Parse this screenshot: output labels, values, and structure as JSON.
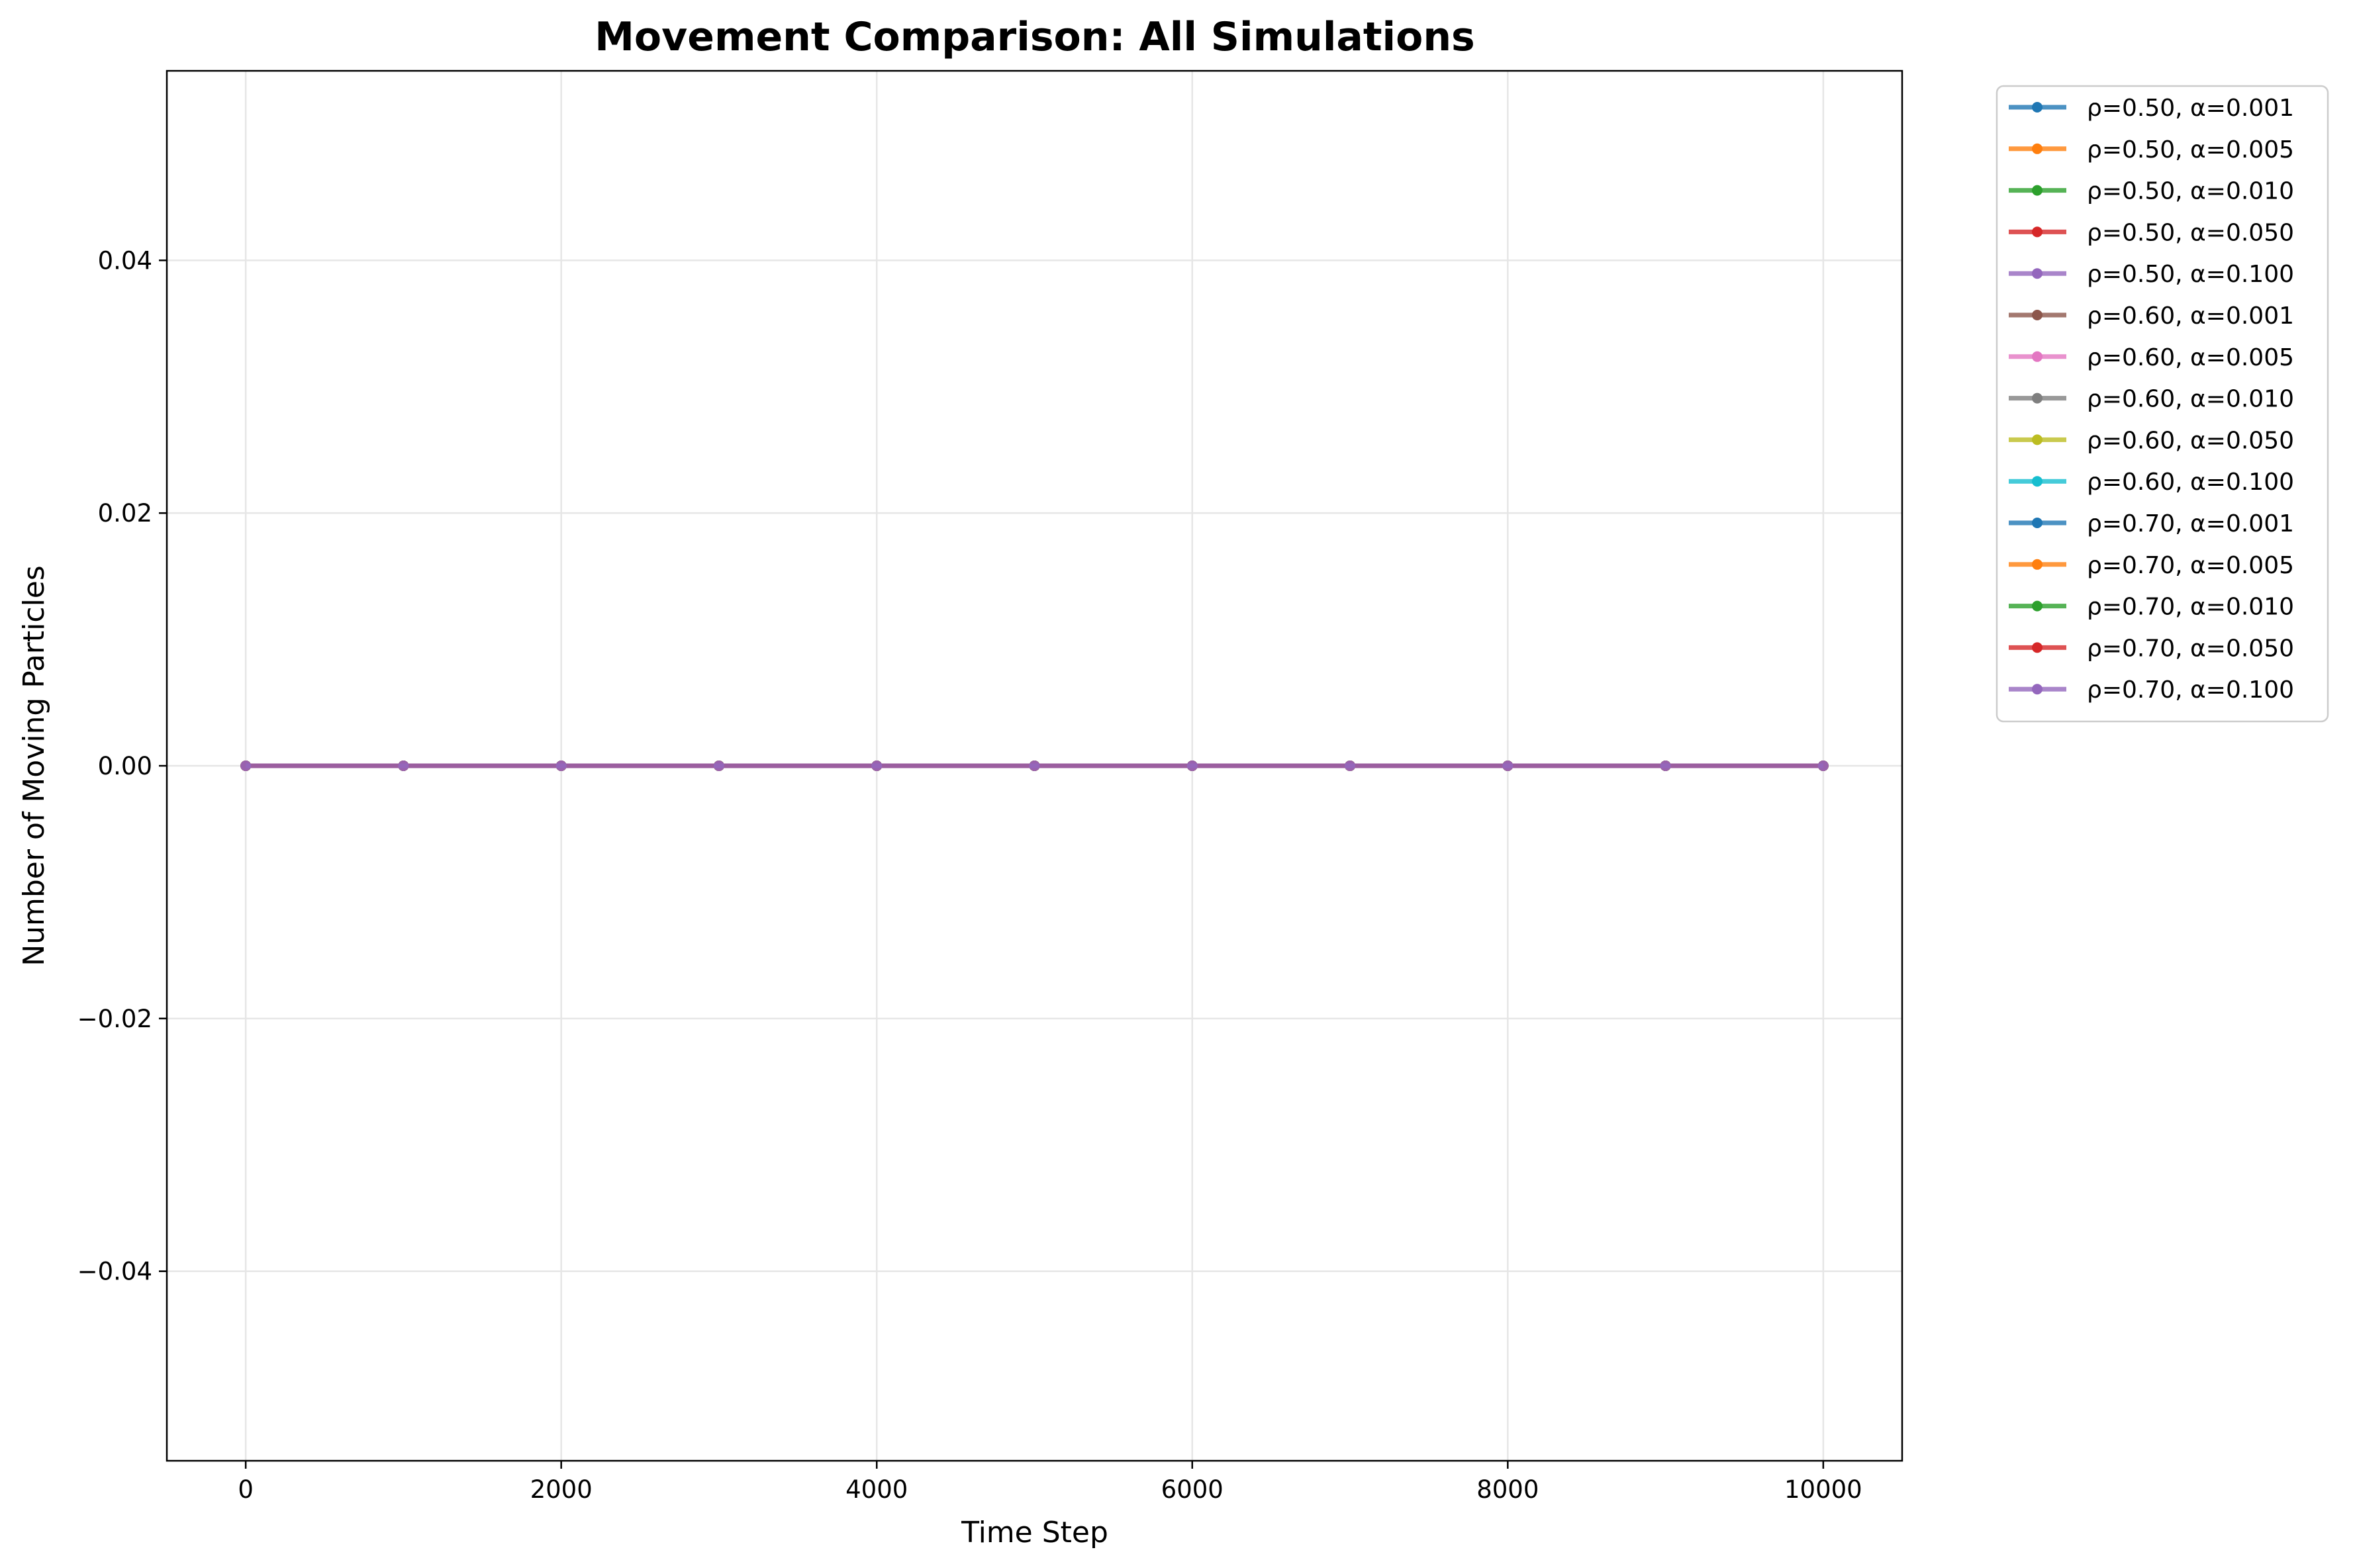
{
  "chart_data": {
    "type": "line",
    "title": "Movement Comparison: All Simulations",
    "xlabel": "Time Step",
    "ylabel": "Number of Moving Particles",
    "xlim": [
      -500,
      10500
    ],
    "ylim": [
      -0.055,
      0.055
    ],
    "xticks": [
      0,
      2000,
      4000,
      6000,
      8000,
      10000
    ],
    "yticks": [
      -0.04,
      -0.02,
      0.0,
      0.02,
      0.04
    ],
    "ytick_labels": [
      "−0.04",
      "−0.02",
      "0.00",
      "0.02",
      "0.04"
    ],
    "grid": true,
    "legend_position": "outside-top-right",
    "x": [
      0,
      1000,
      2000,
      3000,
      4000,
      5000,
      6000,
      7000,
      8000,
      9000,
      10000
    ],
    "series": [
      {
        "name": "ρ=0.50, α=0.001",
        "color": "#1f77b4",
        "values": [
          0,
          0,
          0,
          0,
          0,
          0,
          0,
          0,
          0,
          0,
          0
        ]
      },
      {
        "name": "ρ=0.50, α=0.005",
        "color": "#ff7f0e",
        "values": [
          0,
          0,
          0,
          0,
          0,
          0,
          0,
          0,
          0,
          0,
          0
        ]
      },
      {
        "name": "ρ=0.50, α=0.010",
        "color": "#2ca02c",
        "values": [
          0,
          0,
          0,
          0,
          0,
          0,
          0,
          0,
          0,
          0,
          0
        ]
      },
      {
        "name": "ρ=0.50, α=0.050",
        "color": "#d62728",
        "values": [
          0,
          0,
          0,
          0,
          0,
          0,
          0,
          0,
          0,
          0,
          0
        ]
      },
      {
        "name": "ρ=0.50, α=0.100",
        "color": "#9467bd",
        "values": [
          0,
          0,
          0,
          0,
          0,
          0,
          0,
          0,
          0,
          0,
          0
        ]
      },
      {
        "name": "ρ=0.60, α=0.001",
        "color": "#8c564b",
        "values": [
          0,
          0,
          0,
          0,
          0,
          0,
          0,
          0,
          0,
          0,
          0
        ]
      },
      {
        "name": "ρ=0.60, α=0.005",
        "color": "#e377c2",
        "values": [
          0,
          0,
          0,
          0,
          0,
          0,
          0,
          0,
          0,
          0,
          0
        ]
      },
      {
        "name": "ρ=0.60, α=0.010",
        "color": "#7f7f7f",
        "values": [
          0,
          0,
          0,
          0,
          0,
          0,
          0,
          0,
          0,
          0,
          0
        ]
      },
      {
        "name": "ρ=0.60, α=0.050",
        "color": "#bcbd22",
        "values": [
          0,
          0,
          0,
          0,
          0,
          0,
          0,
          0,
          0,
          0,
          0
        ]
      },
      {
        "name": "ρ=0.60, α=0.100",
        "color": "#17becf",
        "values": [
          0,
          0,
          0,
          0,
          0,
          0,
          0,
          0,
          0,
          0,
          0
        ]
      },
      {
        "name": "ρ=0.70, α=0.001",
        "color": "#1f77b4",
        "values": [
          0,
          0,
          0,
          0,
          0,
          0,
          0,
          0,
          0,
          0,
          0
        ]
      },
      {
        "name": "ρ=0.70, α=0.005",
        "color": "#ff7f0e",
        "values": [
          0,
          0,
          0,
          0,
          0,
          0,
          0,
          0,
          0,
          0,
          0
        ]
      },
      {
        "name": "ρ=0.70, α=0.010",
        "color": "#2ca02c",
        "values": [
          0,
          0,
          0,
          0,
          0,
          0,
          0,
          0,
          0,
          0,
          0
        ]
      },
      {
        "name": "ρ=0.70, α=0.050",
        "color": "#d62728",
        "values": [
          0,
          0,
          0,
          0,
          0,
          0,
          0,
          0,
          0,
          0,
          0
        ]
      },
      {
        "name": "ρ=0.70, α=0.100",
        "color": "#9467bd",
        "values": [
          0,
          0,
          0,
          0,
          0,
          0,
          0,
          0,
          0,
          0,
          0
        ]
      }
    ]
  }
}
